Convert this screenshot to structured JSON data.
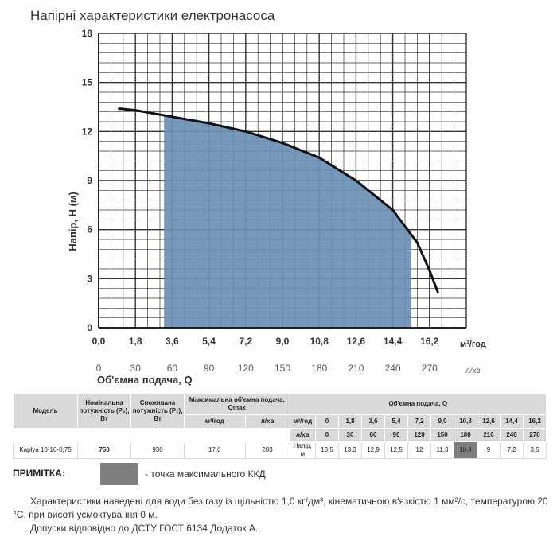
{
  "title": "Напірні характеристики електронасоса",
  "chart_data": {
    "type": "area",
    "title": "Напірні характеристики електронасоса",
    "ylabel": "Напір, Н (м)",
    "xlabel": "Об'ємна подача, Q",
    "x_unit": "м³/год",
    "x2_unit": "л/хв",
    "xlim": [
      0,
      18
    ],
    "ylim": [
      0,
      18
    ],
    "grid": true,
    "y_ticks": [
      "0",
      "3",
      "6",
      "9",
      "12",
      "15",
      "18"
    ],
    "x_ticks": [
      "0,0",
      "1,8",
      "3,6",
      "5,4",
      "7,2",
      "9,0",
      "10,8",
      "12,6",
      "14,4",
      "16,2"
    ],
    "x2_ticks": [
      "0",
      "30",
      "60",
      "90",
      "120",
      "150",
      "180",
      "210",
      "240",
      "270"
    ],
    "series": [
      {
        "x": [
          1.0,
          1.8,
          3.6,
          5.4,
          7.2,
          9.0,
          10.8,
          12.6,
          14.4,
          15.6,
          16.2,
          16.6
        ],
        "values": [
          13.4,
          13.3,
          12.9,
          12.5,
          12.0,
          11.3,
          10.4,
          9.0,
          7.2,
          5.2,
          3.5,
          2.2
        ]
      }
    ],
    "shaded_region": {
      "x_from": 3.2,
      "x_to": 15.3,
      "color": "#6a8fb5"
    },
    "colors": {
      "curve": "#111111",
      "fill": "#6a8fb5",
      "grid": "#333333"
    }
  },
  "table": {
    "model_header": "Модель",
    "p2_header": "Номінальна потужність (Р₂), Вт",
    "p1_header": "Споживана потужність (Р₁), Вт",
    "qmax_header": "Максимальна об'ємна подача, Qmax",
    "qmax_unit_m3": "м³/год",
    "qmax_unit_l": "л/хв",
    "flow_header": "Об'ємна подача, Q",
    "unit_m3": "м³/год",
    "unit_l": "л/хв",
    "flow_m3": [
      "0",
      "1,8",
      "3,6",
      "5,4",
      "7,2",
      "9,0",
      "10,8",
      "12,6",
      "14,4",
      "16,2"
    ],
    "flow_l": [
      "0",
      "30",
      "60",
      "90",
      "120",
      "150",
      "180",
      "210",
      "240",
      "270"
    ],
    "row": {
      "model": "Kaplya 10-10-0,75",
      "p2": "750",
      "p1": "930",
      "qmax_m3": "17,0",
      "qmax_l": "283",
      "head_label": "Напір, м",
      "heads": [
        "13,5",
        "13,3",
        "12,9",
        "12,5",
        "12",
        "11,3",
        "10,4",
        "9",
        "7,2",
        "3,5"
      ]
    }
  },
  "note": {
    "label": "ПРИМІТКА:",
    "text": "- точка максимального ККД",
    "swatch_color": "#7f7f7f"
  },
  "footer": {
    "line1": "Характеристики наведені для води без газу із щільністю 1,0 кг/дм³, кінематичною в'язкістю 1 мм²/с, температурою 20 °C, при висоті усмоктування 0 м.",
    "line2": "Допуски відповідно до ДСТУ ГОСТ 6134 Додаток А."
  }
}
